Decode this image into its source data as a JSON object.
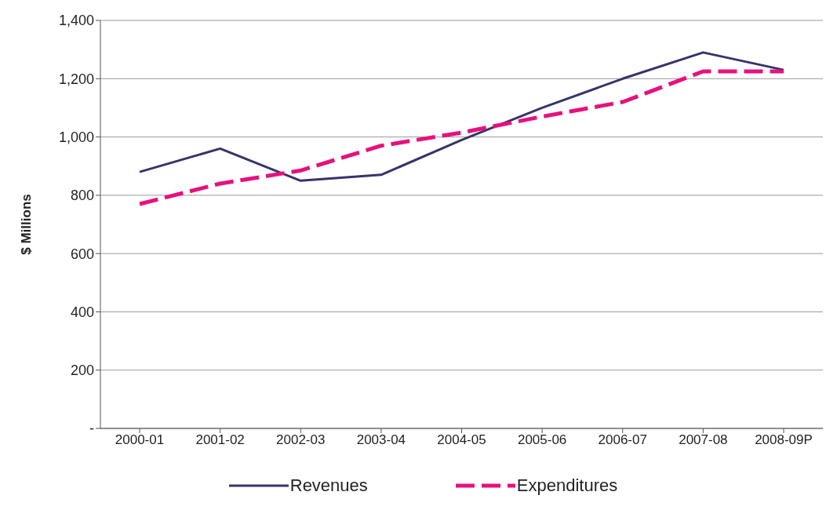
{
  "chart_data": {
    "type": "line",
    "ylabel": "$ Millions",
    "categories": [
      "2000-01",
      "2001-02",
      "2002-03",
      "2003-04",
      "2004-05",
      "2005-06",
      "2006-07",
      "2007-08",
      "2008-09P"
    ],
    "series": [
      {
        "name": "Revenues",
        "color": "#35346a",
        "values": [
          880,
          960,
          850,
          870,
          990,
          1100,
          1200,
          1290,
          1230
        ],
        "line_style": "solid"
      },
      {
        "name": "Expenditures",
        "color": "#e6117e",
        "values": [
          770,
          840,
          885,
          970,
          1015,
          1070,
          1120,
          1225,
          1225
        ],
        "line_style": "dashed"
      }
    ],
    "ylim": [
      0,
      1400
    ],
    "yticks": [
      {
        "value": 0,
        "label": "-"
      },
      {
        "value": 200,
        "label": "200"
      },
      {
        "value": 400,
        "label": "400"
      },
      {
        "value": 600,
        "label": "600"
      },
      {
        "value": 800,
        "label": "800"
      },
      {
        "value": 1000,
        "label": "1,000"
      },
      {
        "value": 1200,
        "label": "1,200"
      },
      {
        "value": 1400,
        "label": "1,400"
      }
    ],
    "grid": "y",
    "legend": "bottom",
    "marker": "none"
  }
}
